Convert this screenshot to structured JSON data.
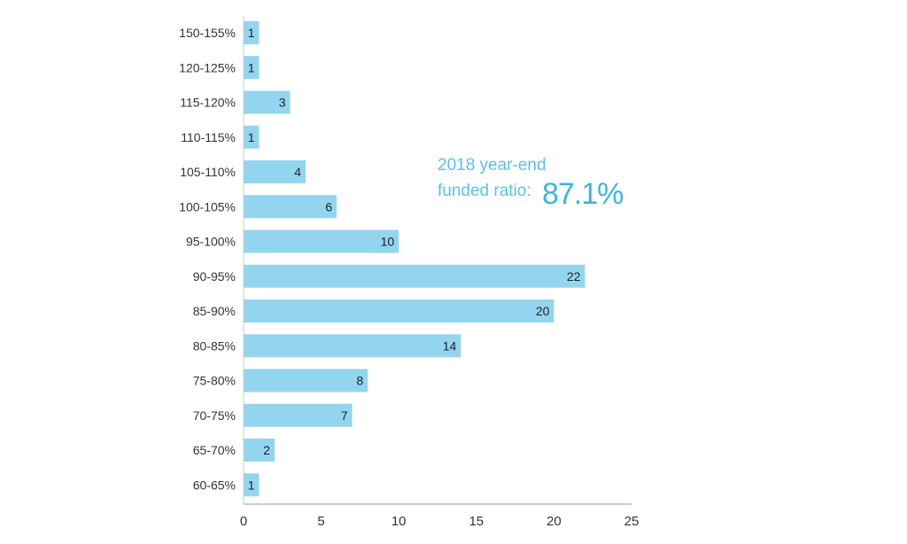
{
  "chart_data": {
    "type": "bar",
    "orientation": "horizontal",
    "categories": [
      "150-155%",
      "120-125%",
      "115-120%",
      "110-115%",
      "105-110%",
      "100-105%",
      "95-100%",
      "90-95%",
      "85-90%",
      "80-85%",
      "75-80%",
      "70-75%",
      "65-70%",
      "60-65%"
    ],
    "values": [
      1,
      1,
      3,
      1,
      4,
      6,
      10,
      22,
      20,
      14,
      8,
      7,
      2,
      1
    ],
    "xlim": [
      0,
      25
    ],
    "xticks": [
      0,
      5,
      10,
      15,
      20,
      25
    ],
    "grid": false,
    "bar_color": "#93d5ee",
    "annotation": {
      "line1": "2018 year-end",
      "line2": "funded ratio:",
      "value": "87.1%",
      "color": "#5bc2e3"
    }
  }
}
